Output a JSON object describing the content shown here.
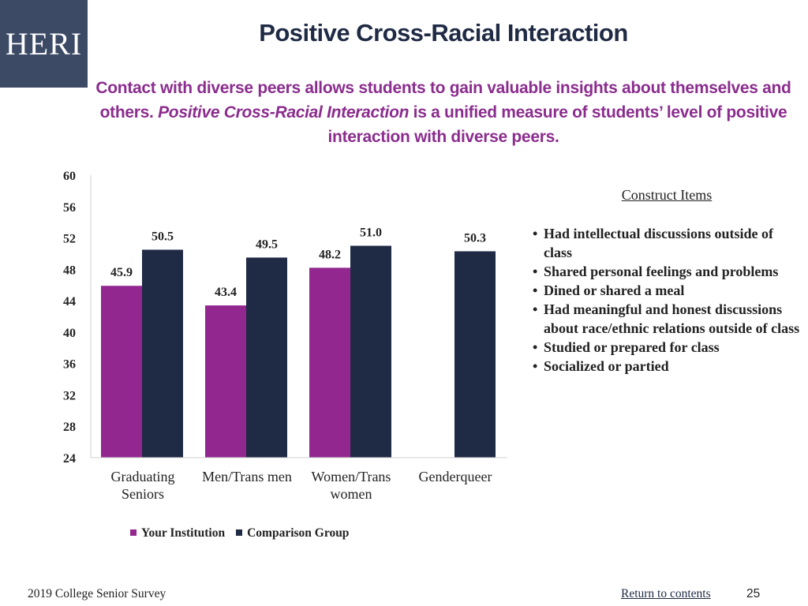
{
  "logo": "HERI",
  "footer": {
    "survey": "2019 College Senior Survey",
    "link": "Return to contents",
    "page": "25"
  },
  "chart_data": {
    "type": "bar",
    "title": "Positive Cross-Racial Interaction",
    "subtitle": [
      "Contact with diverse peers allows students to gain valuable insights about themselves and others. ",
      "Positive Cross-Racial Interaction",
      " is a unified measure of students’ level of positive interaction with diverse peers."
    ],
    "categories": [
      "Graduating Seniors",
      "Men/Trans men",
      "Women/Trans women",
      "Genderqueer"
    ],
    "series": [
      {
        "name": "Your Institution",
        "color": "#92278f",
        "values": [
          45.9,
          43.4,
          48.2,
          null
        ]
      },
      {
        "name": "Comparison Group",
        "color": "#1f2a44",
        "values": [
          50.5,
          49.5,
          51.0,
          50.3
        ],
        "value_labels": [
          "50.5",
          "49.5",
          "51.0",
          "50.3"
        ]
      }
    ],
    "ylim": [
      24,
      60
    ],
    "yticks": [
      24,
      28,
      32,
      36,
      40,
      44,
      48,
      52,
      56,
      60
    ],
    "grid": false,
    "legend": "bottom",
    "construct_title": "Construct Items",
    "construct_items": [
      "Had intellectual discussions outside of class",
      "Shared personal feelings and problems",
      "Dined or shared a meal",
      "Had meaningful and honest discussions about race/ethnic relations outside of class",
      "Studied or prepared for class",
      "Socialized or partied"
    ]
  }
}
